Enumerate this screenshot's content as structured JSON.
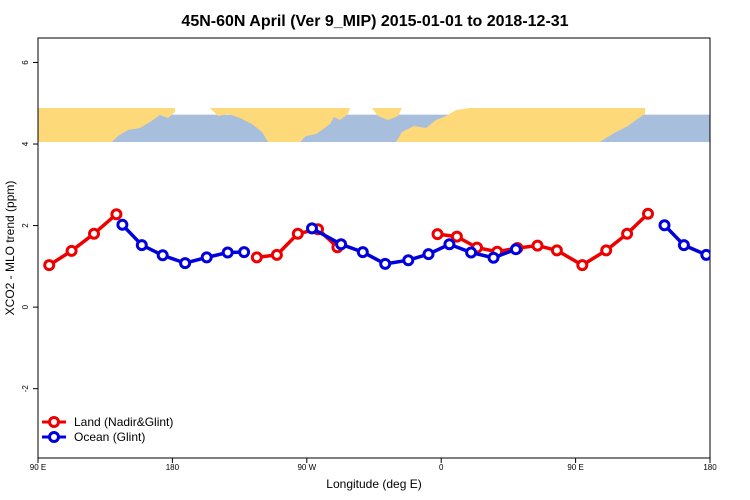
{
  "chart_data": {
    "type": "line",
    "title": "45N-60N April (Ver 9_MIP)   2015-01-01 to 2018-12-31",
    "xlabel": "Longitude (deg E)",
    "ylabel": "XCO2 - MLO trend (ppm)",
    "xlim": [
      90,
      540
    ],
    "ylim": [
      -3.7,
      6.6
    ],
    "x_ticks": [
      {
        "value": 90,
        "label": "90 E"
      },
      {
        "value": 180,
        "label": "180"
      },
      {
        "value": 270,
        "label": "90 W"
      },
      {
        "value": 360,
        "label": "0"
      },
      {
        "value": 450,
        "label": "90 E"
      },
      {
        "value": 540,
        "label": "180"
      }
    ],
    "y_ticks": [
      {
        "value": -2,
        "label": "-2"
      },
      {
        "value": 0,
        "label": "0"
      },
      {
        "value": 2,
        "label": "2"
      },
      {
        "value": 4,
        "label": "4"
      },
      {
        "value": 6,
        "label": "6"
      }
    ],
    "map_band": {
      "y_from": 3.9,
      "y_to": 4.72,
      "land_color": "#fdd97a",
      "ocean_color": "#a8bedd"
    },
    "grid": false,
    "legend_position": "bottom-left",
    "series": [
      {
        "name": "Land (Nadir&Glint)",
        "color": "#ee0000",
        "segments": [
          [
            [
              97.5,
              1.03
            ],
            [
              112.5,
              1.38
            ],
            [
              127.5,
              1.8
            ],
            [
              142.5,
              2.28
            ]
          ],
          [
            [
              236.5,
              1.22
            ],
            [
              250,
              1.28
            ],
            [
              264,
              1.8
            ],
            [
              277.5,
              1.91
            ],
            [
              290.5,
              1.47
            ]
          ],
          [
            [
              357.5,
              1.79
            ],
            [
              370.5,
              1.73
            ],
            [
              384,
              1.46
            ],
            [
              397.5,
              1.36
            ],
            [
              411,
              1.45
            ],
            [
              424.5,
              1.51
            ],
            [
              437.5,
              1.39
            ],
            [
              454.5,
              1.03
            ],
            [
              470.5,
              1.39
            ],
            [
              484.5,
              1.8
            ],
            [
              498.5,
              2.29
            ]
          ]
        ]
      },
      {
        "name": "Ocean (Glint)",
        "color": "#0000dd",
        "segments": [
          [
            [
              146.5,
              2.02
            ],
            [
              159.5,
              1.52
            ],
            [
              173.5,
              1.27
            ],
            [
              188.5,
              1.08
            ],
            [
              203,
              1.22
            ],
            [
              217,
              1.34
            ],
            [
              228,
              1.35
            ]
          ],
          [
            [
              273.5,
              1.93
            ],
            [
              293,
              1.54
            ],
            [
              307.5,
              1.35
            ],
            [
              322.5,
              1.06
            ],
            [
              338,
              1.15
            ],
            [
              351.5,
              1.3
            ],
            [
              365.5,
              1.54
            ],
            [
              380,
              1.34
            ],
            [
              395,
              1.21
            ],
            [
              410,
              1.42
            ]
          ],
          [
            [
              509.5,
              2.01
            ],
            [
              522.5,
              1.52
            ],
            [
              537.5,
              1.28
            ]
          ]
        ]
      }
    ]
  }
}
